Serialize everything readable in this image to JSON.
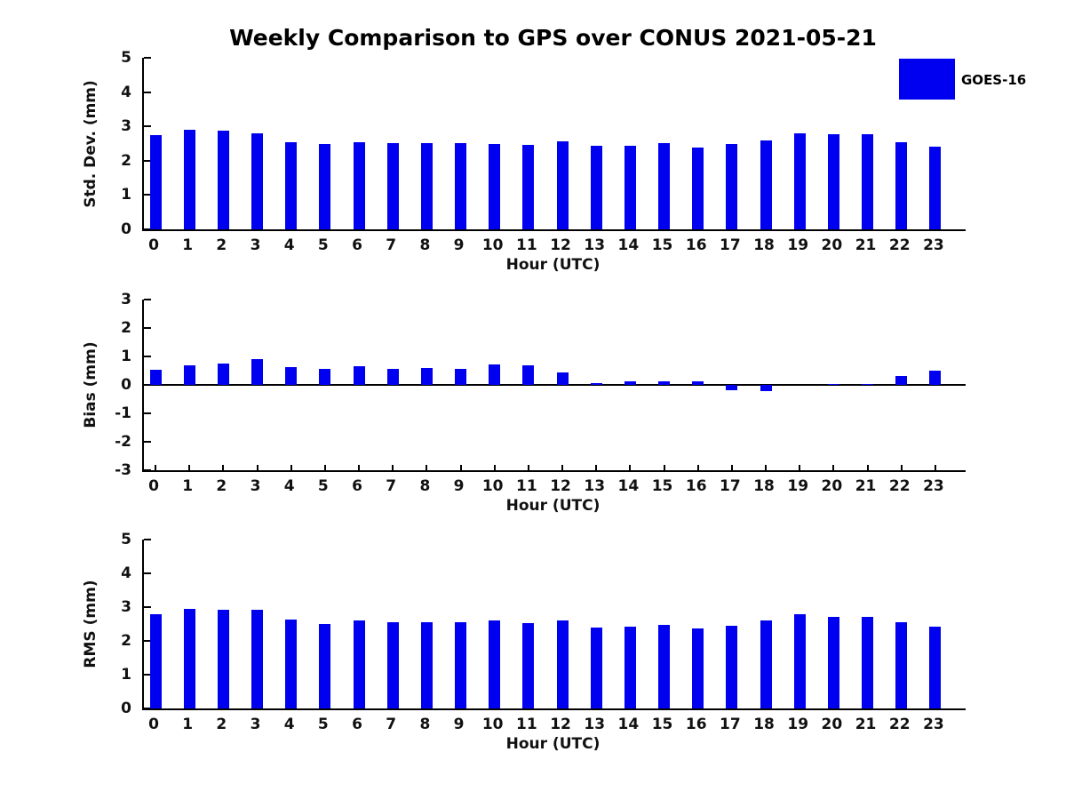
{
  "title": "Weekly Comparison to GPS over CONUS 2021-05-21",
  "legend": {
    "label": "GOES-16",
    "color": "#0000F0",
    "position": "top-right"
  },
  "colors": {
    "bar": "#0000F0",
    "axis": "#000000",
    "text": "#111111",
    "background": "#ffffff"
  },
  "chart_data": [
    {
      "type": "bar",
      "title": "",
      "ylabel": "Std. Dev. (mm)",
      "xlabel": "Hour (UTC)",
      "series_name": "GOES-16",
      "categories": [
        0,
        1,
        2,
        3,
        4,
        5,
        6,
        7,
        8,
        9,
        10,
        11,
        12,
        13,
        14,
        15,
        16,
        17,
        18,
        19,
        20,
        21,
        22,
        23
      ],
      "values": [
        2.75,
        2.9,
        2.88,
        2.8,
        2.55,
        2.49,
        2.54,
        2.52,
        2.52,
        2.52,
        2.49,
        2.46,
        2.57,
        2.44,
        2.44,
        2.52,
        2.39,
        2.48,
        2.6,
        2.8,
        2.76,
        2.76,
        2.54,
        2.42
      ],
      "ylim": [
        0,
        5
      ],
      "yticks": [
        0,
        1,
        2,
        3,
        4,
        5
      ],
      "grid": false
    },
    {
      "type": "bar",
      "title": "",
      "ylabel": "Bias (mm)",
      "xlabel": "Hour (UTC)",
      "series_name": "GOES-16",
      "categories": [
        0,
        1,
        2,
        3,
        4,
        5,
        6,
        7,
        8,
        9,
        10,
        11,
        12,
        13,
        14,
        15,
        16,
        17,
        18,
        19,
        20,
        21,
        22,
        23
      ],
      "values": [
        0.53,
        0.7,
        0.74,
        0.92,
        0.64,
        0.55,
        0.67,
        0.56,
        0.59,
        0.55,
        0.73,
        0.7,
        0.43,
        0.06,
        0.12,
        0.12,
        0.13,
        -0.18,
        -0.22,
        0.0,
        0.02,
        0.02,
        0.31,
        0.5
      ],
      "ylim": [
        -3,
        3
      ],
      "yticks": [
        -3,
        -2,
        -1,
        0,
        1,
        2,
        3
      ],
      "grid": false
    },
    {
      "type": "bar",
      "title": "",
      "ylabel": "RMS (mm)",
      "xlabel": "Hour (UTC)",
      "series_name": "GOES-16",
      "categories": [
        0,
        1,
        2,
        3,
        4,
        5,
        6,
        7,
        8,
        9,
        10,
        11,
        12,
        13,
        14,
        15,
        16,
        17,
        18,
        19,
        20,
        21,
        22,
        23
      ],
      "values": [
        2.8,
        2.95,
        2.92,
        2.92,
        2.62,
        2.51,
        2.6,
        2.55,
        2.56,
        2.56,
        2.6,
        2.53,
        2.6,
        2.4,
        2.41,
        2.48,
        2.38,
        2.45,
        2.6,
        2.78,
        2.72,
        2.72,
        2.55,
        2.43
      ],
      "ylim": [
        0,
        5
      ],
      "yticks": [
        0,
        1,
        2,
        3,
        4,
        5
      ],
      "grid": false
    }
  ]
}
